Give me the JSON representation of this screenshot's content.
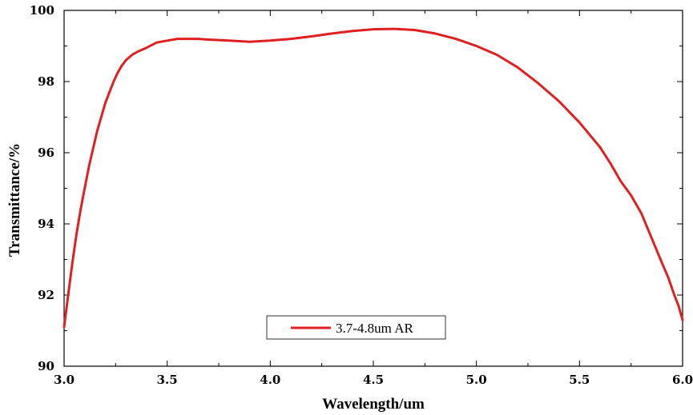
{
  "chart_data": {
    "type": "line",
    "title": "",
    "xlabel": "Wavelength/um",
    "ylabel": "Transmittance/%",
    "xlim": [
      3.0,
      6.0
    ],
    "ylim": [
      90,
      100
    ],
    "x_ticks": [
      "3.0",
      "3.5",
      "4.0",
      "4.5",
      "5.0",
      "5.5",
      "6.0"
    ],
    "y_ticks": [
      "90",
      "92",
      "94",
      "96",
      "98",
      "100"
    ],
    "grid": false,
    "legend_position": "bottom-center",
    "series_color": "#e02020",
    "series": [
      {
        "name": "3.7-4.8um AR",
        "x": [
          3.0,
          3.02,
          3.04,
          3.06,
          3.08,
          3.1,
          3.12,
          3.14,
          3.16,
          3.18,
          3.2,
          3.22,
          3.24,
          3.26,
          3.28,
          3.3,
          3.33,
          3.36,
          3.4,
          3.45,
          3.5,
          3.55,
          3.6,
          3.65,
          3.7,
          3.8,
          3.9,
          4.0,
          4.1,
          4.2,
          4.3,
          4.4,
          4.5,
          4.6,
          4.7,
          4.8,
          4.9,
          5.0,
          5.1,
          5.2,
          5.3,
          5.4,
          5.5,
          5.6,
          5.65,
          5.7,
          5.75,
          5.8,
          5.85,
          5.9,
          5.93,
          5.96,
          5.98,
          6.0
        ],
        "values": [
          91.1,
          92.0,
          92.9,
          93.7,
          94.4,
          95.0,
          95.6,
          96.1,
          96.6,
          97.0,
          97.4,
          97.7,
          98.0,
          98.25,
          98.45,
          98.6,
          98.75,
          98.85,
          98.95,
          99.1,
          99.15,
          99.2,
          99.2,
          99.2,
          99.18,
          99.15,
          99.12,
          99.15,
          99.2,
          99.27,
          99.35,
          99.42,
          99.47,
          99.48,
          99.45,
          99.35,
          99.2,
          99.0,
          98.75,
          98.4,
          97.95,
          97.45,
          96.85,
          96.15,
          95.7,
          95.2,
          94.8,
          94.3,
          93.6,
          92.9,
          92.5,
          92.0,
          91.7,
          91.3
        ]
      }
    ]
  }
}
